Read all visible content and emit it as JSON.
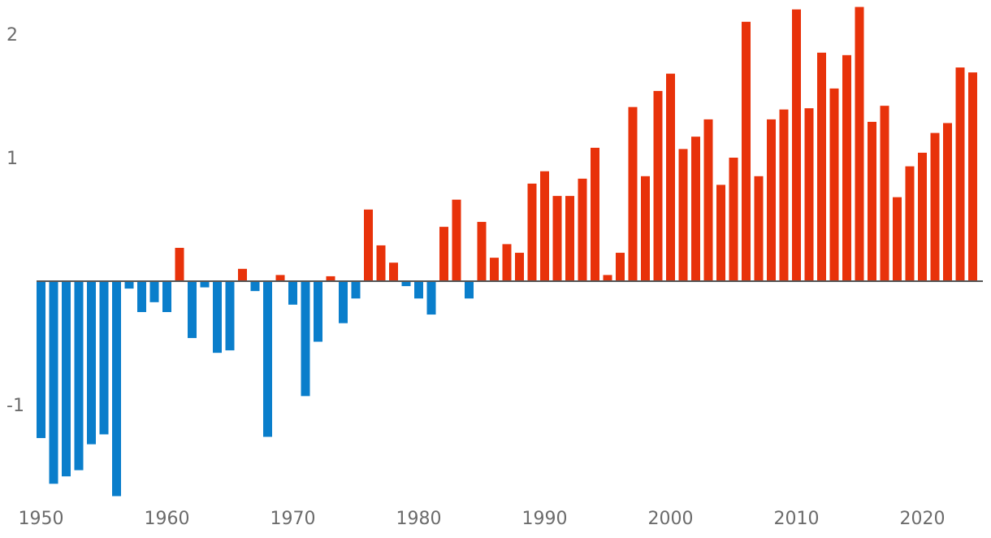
{
  "chart_data": {
    "type": "bar",
    "title": "",
    "xlabel": "",
    "ylabel": "",
    "xlim": [
      1950,
      2024
    ],
    "ylim": [
      -1.75,
      2.25
    ],
    "grid": false,
    "baseline": 0,
    "colors": {
      "positive": "#e8320a",
      "negative": "#0a7ecb",
      "axis": "#555555",
      "tick_text": "#6b6b6b"
    },
    "x_ticks": [
      1950,
      1960,
      1970,
      1980,
      1990,
      2000,
      2010,
      2020
    ],
    "y_ticks": [
      -1,
      1,
      2
    ],
    "x": [
      1950,
      1951,
      1952,
      1953,
      1954,
      1955,
      1956,
      1957,
      1958,
      1959,
      1960,
      1961,
      1962,
      1963,
      1964,
      1965,
      1966,
      1967,
      1968,
      1969,
      1970,
      1971,
      1972,
      1973,
      1974,
      1975,
      1976,
      1977,
      1978,
      1979,
      1980,
      1981,
      1982,
      1983,
      1984,
      1985,
      1986,
      1987,
      1988,
      1989,
      1990,
      1991,
      1992,
      1993,
      1994,
      1995,
      1996,
      1997,
      1998,
      1999,
      2000,
      2001,
      2002,
      2003,
      2004,
      2005,
      2006,
      2007,
      2008,
      2009,
      2010,
      2011,
      2012,
      2013,
      2014,
      2015,
      2016,
      2017,
      2018,
      2019,
      2020,
      2021,
      2022,
      2023,
      2024
    ],
    "values": [
      -1.27,
      -1.64,
      -1.58,
      -1.53,
      -1.32,
      -1.24,
      -1.74,
      -0.06,
      -0.25,
      -0.17,
      -0.25,
      0.27,
      -0.46,
      -0.05,
      -0.58,
      -0.56,
      0.1,
      -0.08,
      -1.26,
      0.05,
      -0.19,
      -0.93,
      -0.49,
      0.04,
      -0.34,
      -0.14,
      0.58,
      0.29,
      0.15,
      -0.04,
      -0.14,
      -0.27,
      0.44,
      0.66,
      -0.14,
      0.48,
      0.19,
      0.3,
      0.23,
      0.79,
      0.89,
      0.69,
      0.69,
      0.83,
      1.08,
      0.05,
      0.23,
      1.41,
      0.85,
      1.54,
      1.68,
      1.07,
      1.17,
      1.31,
      0.78,
      1.0,
      2.1,
      0.85,
      1.31,
      1.39,
      2.2,
      1.4,
      1.85,
      1.56,
      1.83,
      2.22,
      1.29,
      1.42,
      0.68,
      0.93,
      1.04,
      1.2,
      1.28,
      1.73,
      1.69
    ]
  }
}
